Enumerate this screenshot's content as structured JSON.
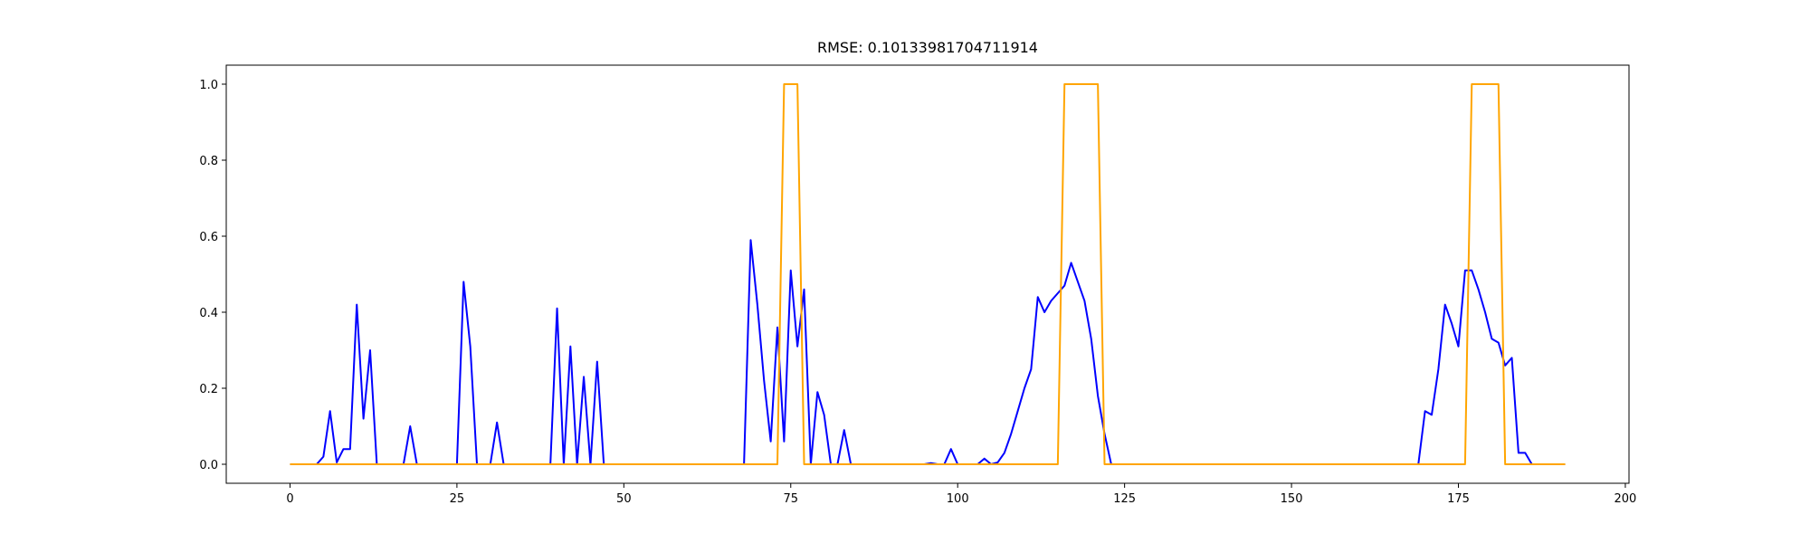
{
  "chart_data": {
    "type": "line",
    "title": "RMSE: 0.10133981704711914",
    "x": [
      0,
      1,
      2,
      3,
      4,
      5,
      6,
      7,
      8,
      9,
      10,
      11,
      12,
      13,
      14,
      15,
      16,
      17,
      18,
      19,
      20,
      21,
      22,
      23,
      24,
      25,
      26,
      27,
      28,
      29,
      30,
      31,
      32,
      33,
      34,
      35,
      36,
      37,
      38,
      39,
      40,
      41,
      42,
      43,
      44,
      45,
      46,
      47,
      48,
      49,
      50,
      51,
      52,
      53,
      54,
      55,
      56,
      57,
      58,
      59,
      60,
      61,
      62,
      63,
      64,
      65,
      66,
      67,
      68,
      69,
      70,
      71,
      72,
      73,
      74,
      75,
      76,
      77,
      78,
      79,
      80,
      81,
      82,
      83,
      84,
      85,
      86,
      87,
      88,
      89,
      90,
      91,
      92,
      93,
      94,
      95,
      96,
      97,
      98,
      99,
      100,
      101,
      102,
      103,
      104,
      105,
      106,
      107,
      108,
      109,
      110,
      111,
      112,
      113,
      114,
      115,
      116,
      117,
      118,
      119,
      120,
      121,
      122,
      123,
      124,
      125,
      126,
      127,
      128,
      129,
      130,
      131,
      132,
      133,
      134,
      135,
      136,
      137,
      138,
      139,
      140,
      141,
      142,
      143,
      144,
      145,
      146,
      147,
      148,
      149,
      150,
      151,
      152,
      153,
      154,
      155,
      156,
      157,
      158,
      159,
      160,
      161,
      162,
      163,
      164,
      165,
      166,
      167,
      168,
      169,
      170,
      171,
      172,
      173,
      174,
      175,
      176,
      177,
      178,
      179,
      180,
      181,
      182,
      183,
      184,
      185,
      186,
      187,
      188,
      189,
      190,
      191
    ],
    "series": [
      {
        "color": "#0000ff",
        "values": [
          0,
          0,
          0,
          0,
          0,
          0.02,
          0.14,
          0.005,
          0.04,
          0.04,
          0.42,
          0.12,
          0.3,
          0,
          0,
          0,
          0,
          0,
          0.1,
          0,
          0,
          0,
          0,
          0,
          0,
          0,
          0.48,
          0.31,
          0,
          0,
          0,
          0.11,
          0,
          0,
          0,
          0,
          0,
          0,
          0,
          0,
          0.41,
          0,
          0.31,
          0,
          0.23,
          0,
          0.27,
          0,
          0,
          0,
          0,
          0,
          0,
          0,
          0,
          0,
          0,
          0,
          0,
          0,
          0,
          0,
          0,
          0,
          0,
          0,
          0,
          0,
          0,
          0.59,
          0.42,
          0.22,
          0.06,
          0.36,
          0.06,
          0.51,
          0.31,
          0.46,
          0,
          0.19,
          0.13,
          0,
          0,
          0.09,
          0,
          0,
          0,
          0,
          0,
          0,
          0,
          0,
          0,
          0,
          0,
          0,
          0.003,
          0,
          0,
          0.04,
          0,
          0,
          0,
          0,
          0.015,
          0,
          0.005,
          0.03,
          0.08,
          0.14,
          0.2,
          0.25,
          0.44,
          0.4,
          0.43,
          0.45,
          0.47,
          0.53,
          0.48,
          0.43,
          0.33,
          0.18,
          0.08,
          0,
          0,
          0,
          0,
          0,
          0,
          0,
          0,
          0,
          0,
          0,
          0,
          0,
          0,
          0,
          0,
          0,
          0,
          0,
          0,
          0,
          0,
          0,
          0,
          0,
          0,
          0,
          0,
          0,
          0,
          0,
          0,
          0,
          0,
          0,
          0,
          0,
          0,
          0,
          0,
          0,
          0,
          0,
          0,
          0,
          0,
          0,
          0.14,
          0.13,
          0.25,
          0.42,
          0.37,
          0.31,
          0.51,
          0.51,
          0.46,
          0.4,
          0.33,
          0.32,
          0.26,
          0.28,
          0.03,
          0.03,
          0,
          0,
          0,
          0,
          0,
          0
        ]
      },
      {
        "color": "#ffa500",
        "values": [
          0,
          0,
          0,
          0,
          0,
          0,
          0,
          0,
          0,
          0,
          0,
          0,
          0,
          0,
          0,
          0,
          0,
          0,
          0,
          0,
          0,
          0,
          0,
          0,
          0,
          0,
          0,
          0,
          0,
          0,
          0,
          0,
          0,
          0,
          0,
          0,
          0,
          0,
          0,
          0,
          0,
          0,
          0,
          0,
          0,
          0,
          0,
          0,
          0,
          0,
          0,
          0,
          0,
          0,
          0,
          0,
          0,
          0,
          0,
          0,
          0,
          0,
          0,
          0,
          0,
          0,
          0,
          0,
          0,
          0,
          0,
          0,
          0,
          0,
          1,
          1,
          1,
          0,
          0,
          0,
          0,
          0,
          0,
          0,
          0,
          0,
          0,
          0,
          0,
          0,
          0,
          0,
          0,
          0,
          0,
          0,
          0,
          0,
          0,
          0,
          0,
          0,
          0,
          0,
          0,
          0,
          0,
          0,
          0,
          0,
          0,
          0,
          0,
          0,
          0,
          0,
          1,
          1,
          1,
          1,
          1,
          1,
          0,
          0,
          0,
          0,
          0,
          0,
          0,
          0,
          0,
          0,
          0,
          0,
          0,
          0,
          0,
          0,
          0,
          0,
          0,
          0,
          0,
          0,
          0,
          0,
          0,
          0,
          0,
          0,
          0,
          0,
          0,
          0,
          0,
          0,
          0,
          0,
          0,
          0,
          0,
          0,
          0,
          0,
          0,
          0,
          0,
          0,
          0,
          0,
          0,
          0,
          0,
          0,
          0,
          0,
          0,
          1,
          1,
          1,
          1,
          1,
          0,
          0,
          0,
          0,
          0,
          0,
          0,
          0,
          0,
          0
        ]
      }
    ],
    "xlim": [
      -9.55,
      200.55
    ],
    "xticks": [
      0,
      25,
      50,
      75,
      100,
      125,
      150,
      175,
      200
    ],
    "ylim": [
      -0.05,
      1.05
    ],
    "yticks": [
      {
        "value": 0,
        "label": "0.0"
      },
      {
        "value": 0.2,
        "label": "0.2"
      },
      {
        "value": 0.4,
        "label": "0.4"
      },
      {
        "value": 0.6,
        "label": "0.6"
      },
      {
        "value": 0.8,
        "label": "0.8"
      },
      {
        "value": 1,
        "label": "1.0"
      }
    ],
    "grid": false
  }
}
